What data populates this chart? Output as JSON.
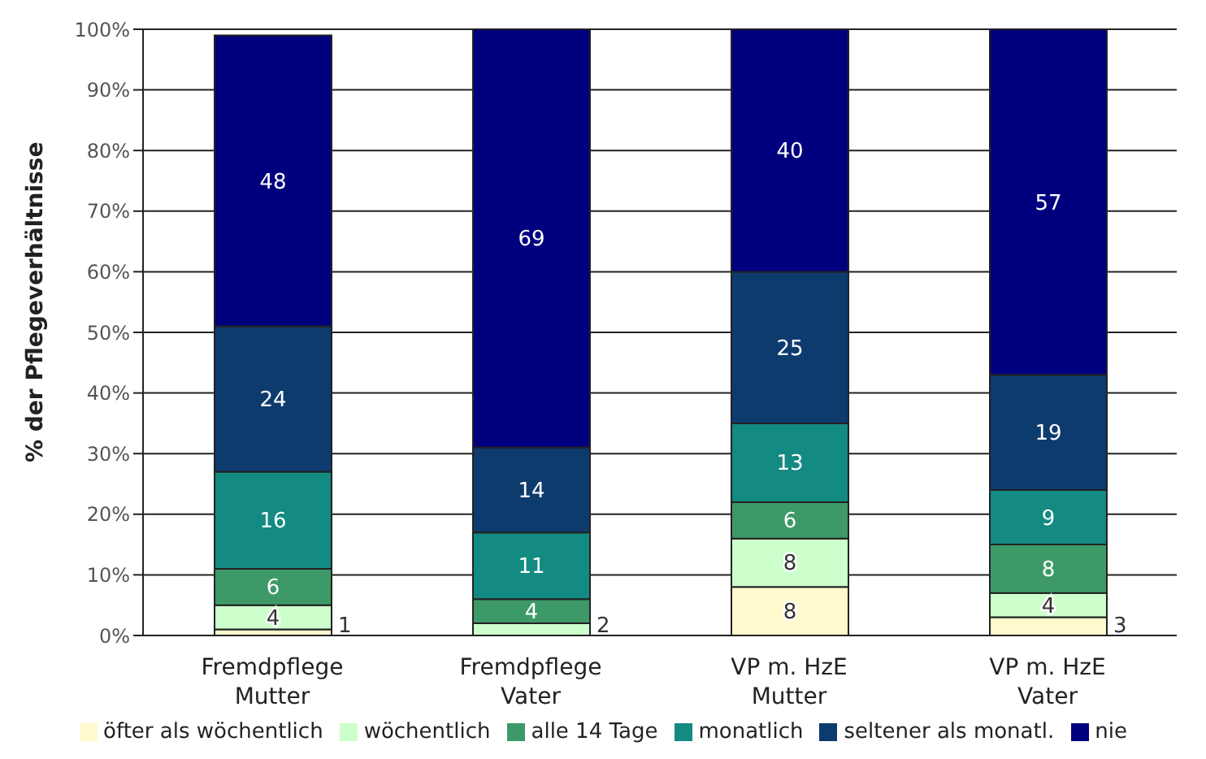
{
  "chart_data": {
    "type": "bar",
    "stacked": true,
    "ylabel": "% der Pflegeverhältnisse",
    "categories": [
      "Fremdpflege\nMutter",
      "Fremdpflege\nVater",
      "VP m. HzE\nMutter",
      "VP m. HzE\nVater"
    ],
    "series": [
      {
        "name": "öfter als wöchentlich",
        "color": "#fffacd",
        "values": [
          1,
          0,
          8,
          3
        ],
        "value_labels": [
          "1",
          null,
          "8",
          "3"
        ]
      },
      {
        "name": "wöchentlich",
        "color": "#ccffcc",
        "values": [
          4,
          2,
          8,
          4
        ],
        "value_labels": [
          "4",
          "2",
          "8",
          "4"
        ]
      },
      {
        "name": "alle 14 Tage",
        "color": "#3d9a68",
        "values": [
          6,
          4,
          6,
          8
        ],
        "value_labels": [
          "6",
          "4",
          "6",
          "8"
        ]
      },
      {
        "name": "monatlich",
        "color": "#138a82",
        "values": [
          16,
          11,
          13,
          9
        ],
        "value_labels": [
          "16",
          "11",
          "13",
          "9"
        ]
      },
      {
        "name": "seltener als monatl.",
        "color": "#0d3b6e",
        "values": [
          24,
          14,
          25,
          19
        ],
        "value_labels": [
          "24",
          "14",
          "25",
          "19"
        ]
      },
      {
        "name": "nie",
        "color": "#00007f",
        "values": [
          48,
          69,
          40,
          57
        ],
        "value_labels": [
          "48",
          "69",
          "40",
          "57"
        ]
      }
    ],
    "ylim": [
      0,
      100
    ],
    "yticks": [
      {
        "value": 0,
        "label": "0%"
      },
      {
        "value": 10,
        "label": "10%"
      },
      {
        "value": 20,
        "label": "20%"
      },
      {
        "value": 30,
        "label": "30%"
      },
      {
        "value": 40,
        "label": "40%"
      },
      {
        "value": 50,
        "label": "50%"
      },
      {
        "value": 60,
        "label": "60%"
      },
      {
        "value": 70,
        "label": "70%"
      },
      {
        "value": 80,
        "label": "80%"
      },
      {
        "value": 90,
        "label": "90%"
      },
      {
        "value": 100,
        "label": "100%"
      }
    ],
    "grid": "y",
    "legend": "bottom"
  }
}
